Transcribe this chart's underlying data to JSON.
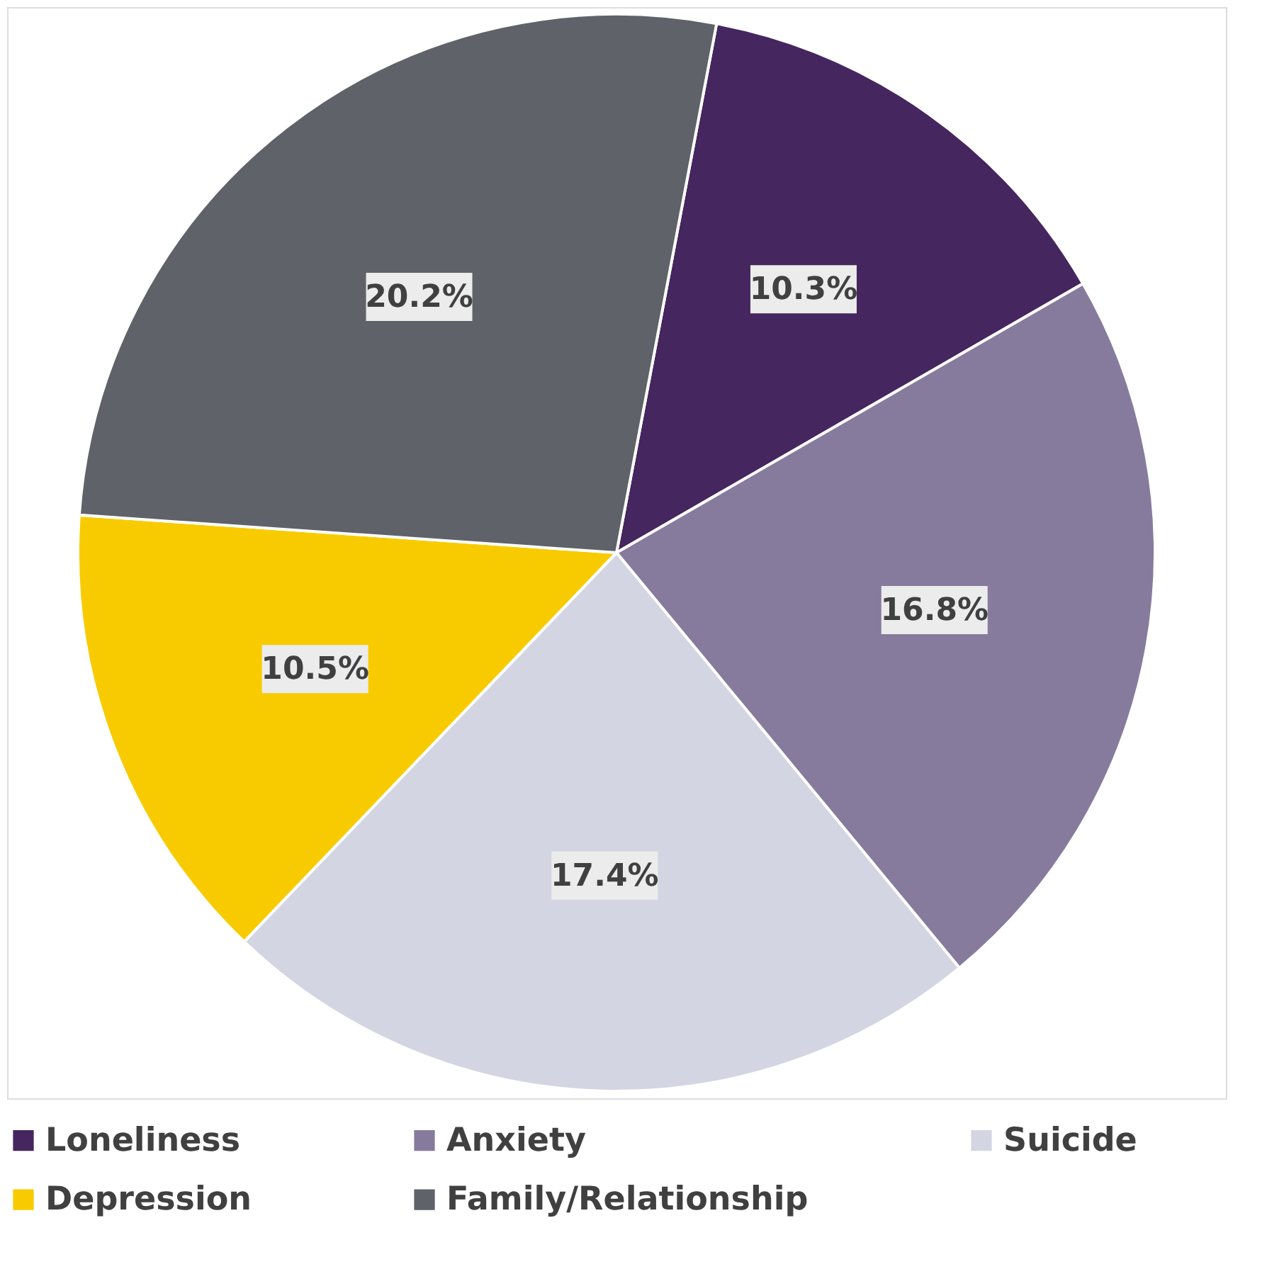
{
  "chart_data": {
    "type": "pie",
    "categories": [
      "Loneliness",
      "Anxiety",
      "Suicide",
      "Depression",
      "Family/Relationship"
    ],
    "values": [
      10.3,
      16.8,
      17.4,
      10.5,
      20.2
    ],
    "colors": [
      "#45265f",
      "#877b9d",
      "#d4d5e2",
      "#f8cb00",
      "#5f6268"
    ],
    "value_labels": [
      "10.3%",
      "16.8%",
      "17.4%",
      "10.5%",
      "20.2%"
    ],
    "legend": "bottom"
  }
}
